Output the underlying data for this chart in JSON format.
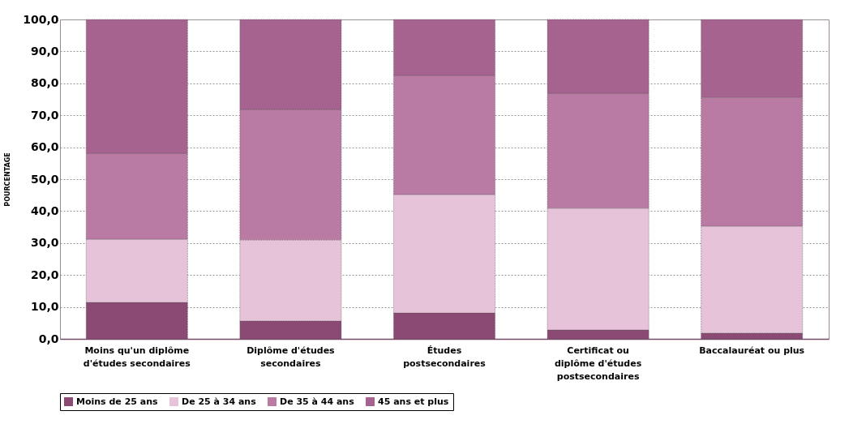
{
  "chart_data": {
    "type": "bar",
    "stacked": true,
    "ylabel": "POURCENTAGE",
    "categories": [
      "Moins qu'un diplôme d'études secondaires",
      "Diplôme d'études secondaires",
      "Études postsecondaires",
      "Certificat ou diplôme d'études postsecondaires",
      "Baccalauréat ou plus"
    ],
    "series": [
      {
        "name": "Moins de 25 ans",
        "color": "#8b4a74",
        "values": [
          11.4,
          5.6,
          8.1,
          2.8,
          1.8
        ]
      },
      {
        "name": "De 25 à 34 ans",
        "color": "#e6c3d8",
        "values": [
          19.8,
          25.4,
          37.1,
          38.1,
          33.5
        ]
      },
      {
        "name": "De 35 à 44 ans",
        "color": "#b97ba3",
        "values": [
          26.9,
          40.8,
          37.3,
          36.0,
          40.3
        ]
      },
      {
        "name": "45 ans et plus",
        "color": "#a6638f",
        "values": [
          41.9,
          28.2,
          17.5,
          23.1,
          24.4
        ]
      }
    ],
    "ylim": [
      0,
      100
    ],
    "yticks": [
      {
        "value": 0,
        "label": "0,0"
      },
      {
        "value": 10,
        "label": "10,0"
      },
      {
        "value": 20,
        "label": "20,0"
      },
      {
        "value": 30,
        "label": "30,0"
      },
      {
        "value": 40,
        "label": "40,0"
      },
      {
        "value": 50,
        "label": "50,0"
      },
      {
        "value": 60,
        "label": "60,0"
      },
      {
        "value": 70,
        "label": "70,0"
      },
      {
        "value": 80,
        "label": "80,0"
      },
      {
        "value": 90,
        "label": "90,0"
      },
      {
        "value": 100,
        "label": "100,0"
      }
    ],
    "grid": "y",
    "legend": "bottom"
  }
}
